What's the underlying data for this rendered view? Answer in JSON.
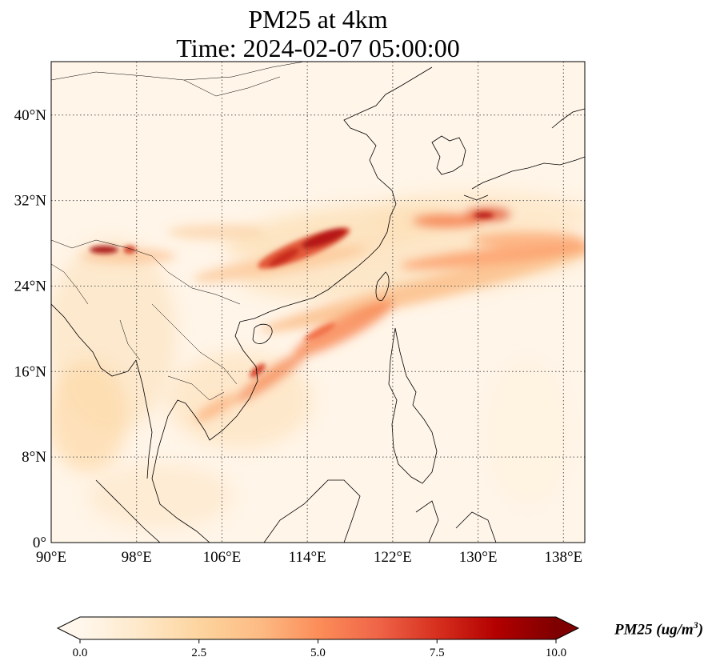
{
  "title": {
    "line1": "PM25 at 4km",
    "line2": "Time: 2024-02-07 05:00:00"
  },
  "map": {
    "projection": "PlateCarree",
    "extent": {
      "lon_min": 90,
      "lon_max": 140,
      "lat_min": 0,
      "lat_max": 45
    },
    "gridlines": "dotted",
    "lon_ticks": [
      {
        "value": 90,
        "label": "90°E"
      },
      {
        "value": 98,
        "label": "98°E"
      },
      {
        "value": 106,
        "label": "106°E"
      },
      {
        "value": 114,
        "label": "114°E"
      },
      {
        "value": 122,
        "label": "122°E"
      },
      {
        "value": 130,
        "label": "130°E"
      },
      {
        "value": 138,
        "label": "138°E"
      }
    ],
    "lat_ticks": [
      {
        "value": 0,
        "label": "0°"
      },
      {
        "value": 8,
        "label": "8°N"
      },
      {
        "value": 16,
        "label": "16°N"
      },
      {
        "value": 24,
        "label": "24°N"
      },
      {
        "value": 32,
        "label": "32°N"
      },
      {
        "value": 40,
        "label": "40°N"
      }
    ]
  },
  "colorbar": {
    "colormap": "OrRd",
    "colors": [
      "#fff7ec",
      "#fee8c8",
      "#fdd49e",
      "#fdbb84",
      "#fc8d59",
      "#ef6548",
      "#d7301f",
      "#b30000",
      "#7f0000"
    ],
    "min": 0.0,
    "max": 10.0,
    "extend": "both",
    "ticks": [
      "0.0",
      "2.5",
      "5.0",
      "7.5",
      "10.0"
    ],
    "label": "PM25 (ug/m",
    "label_sup": "3",
    "label_close": ")"
  },
  "plumes": [
    {
      "region": "Central China",
      "lon": 115.5,
      "lat": 28.3,
      "value": 9.5
    },
    {
      "region": "Northern Myanmar",
      "lon": 95.5,
      "lat": 27.5,
      "value": 9.0
    },
    {
      "region": "East China Sea to Japan",
      "lon": 130,
      "lat": 30.5,
      "value": 7.0
    },
    {
      "region": "South China Sea",
      "lon": 115,
      "lat": 19,
      "value": 5.5
    },
    {
      "region": "Western Pacific",
      "lon": 128,
      "lat": 26,
      "value": 4.5
    },
    {
      "region": "Central Vietnam coast",
      "lon": 109,
      "lat": 15.5,
      "value": 5.5
    }
  ]
}
